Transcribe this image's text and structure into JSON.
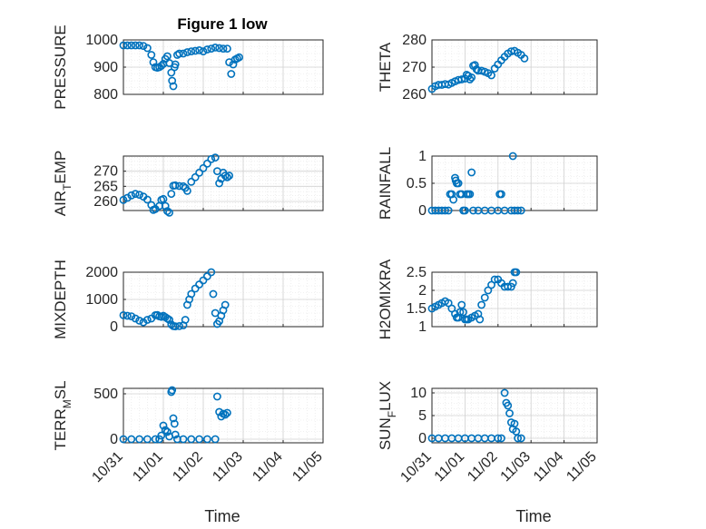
{
  "figure": {
    "title": "Figure 1 low",
    "xlabel": "Time",
    "xticks": [
      "10/31",
      "11/01",
      "11/02",
      "11/03",
      "11/04",
      "11/05"
    ],
    "marker_color": "#0072BD",
    "marker": "circle-open",
    "grid": "major-and-minor"
  },
  "chart_data": [
    {
      "type": "scatter",
      "name": "PRESSURE",
      "ylabel": "PRESSURE",
      "ylim": [
        800,
        1000
      ],
      "yticks": [
        800,
        900,
        1000
      ],
      "xlim": [
        0,
        5
      ],
      "points": [
        [
          0,
          980
        ],
        [
          0.1,
          980
        ],
        [
          0.2,
          980
        ],
        [
          0.3,
          980
        ],
        [
          0.4,
          980
        ],
        [
          0.5,
          978
        ],
        [
          0.6,
          970
        ],
        [
          0.7,
          945
        ],
        [
          0.75,
          918
        ],
        [
          0.8,
          900
        ],
        [
          0.85,
          898
        ],
        [
          0.9,
          900
        ],
        [
          0.95,
          905
        ],
        [
          1.0,
          912
        ],
        [
          1.05,
          930
        ],
        [
          1.1,
          940
        ],
        [
          1.15,
          915
        ],
        [
          1.2,
          880
        ],
        [
          1.22,
          850
        ],
        [
          1.25,
          830
        ],
        [
          1.28,
          900
        ],
        [
          1.3,
          910
        ],
        [
          1.35,
          945
        ],
        [
          1.4,
          950
        ],
        [
          1.5,
          950
        ],
        [
          1.6,
          955
        ],
        [
          1.7,
          958
        ],
        [
          1.8,
          960
        ],
        [
          1.9,
          962
        ],
        [
          2.0,
          958
        ],
        [
          2.1,
          965
        ],
        [
          2.2,
          968
        ],
        [
          2.3,
          972
        ],
        [
          2.4,
          970
        ],
        [
          2.5,
          968
        ],
        [
          2.6,
          968
        ],
        [
          2.65,
          918
        ],
        [
          2.7,
          875
        ],
        [
          2.75,
          910
        ],
        [
          2.8,
          928
        ],
        [
          2.85,
          932
        ],
        [
          2.9,
          936
        ]
      ]
    },
    {
      "type": "scatter",
      "name": "THETA",
      "ylabel": "THETA",
      "ylim": [
        260,
        280
      ],
      "yticks": [
        260,
        270,
        280
      ],
      "xlim": [
        0,
        5
      ],
      "points": [
        [
          0,
          262
        ],
        [
          0.1,
          263
        ],
        [
          0.2,
          263.5
        ],
        [
          0.3,
          263.5
        ],
        [
          0.4,
          263.8
        ],
        [
          0.5,
          263.6
        ],
        [
          0.6,
          264.2
        ],
        [
          0.7,
          264.8
        ],
        [
          0.8,
          265.3
        ],
        [
          0.9,
          265.5
        ],
        [
          1.0,
          265.8
        ],
        [
          1.05,
          267.2
        ],
        [
          1.1,
          266.8
        ],
        [
          1.15,
          265.5
        ],
        [
          1.2,
          266.2
        ],
        [
          1.25,
          270.5
        ],
        [
          1.3,
          270.8
        ],
        [
          1.35,
          269.2
        ],
        [
          1.4,
          268.7
        ],
        [
          1.5,
          268.7
        ],
        [
          1.6,
          268.3
        ],
        [
          1.7,
          267.8
        ],
        [
          1.8,
          267.0
        ],
        [
          1.9,
          269.5
        ],
        [
          2.0,
          271.0
        ],
        [
          2.1,
          272.5
        ],
        [
          2.2,
          273.8
        ],
        [
          2.3,
          275.0
        ],
        [
          2.4,
          275.8
        ],
        [
          2.5,
          276.0
        ],
        [
          2.6,
          275.3
        ],
        [
          2.7,
          274.5
        ],
        [
          2.8,
          273.2
        ]
      ]
    },
    {
      "type": "scatter",
      "name": "AIR_TEMP",
      "ylabel": "AIR_TEMP",
      "ylim": [
        257,
        275
      ],
      "yticks": [
        260,
        265,
        270
      ],
      "xlim": [
        0,
        5
      ],
      "points": [
        [
          0,
          260.5
        ],
        [
          0.1,
          261.2
        ],
        [
          0.2,
          262
        ],
        [
          0.3,
          262.5
        ],
        [
          0.4,
          262.2
        ],
        [
          0.5,
          261.6
        ],
        [
          0.6,
          260.6
        ],
        [
          0.7,
          258.8
        ],
        [
          0.75,
          257.2
        ],
        [
          0.8,
          257.5
        ],
        [
          0.9,
          258.5
        ],
        [
          0.95,
          260.5
        ],
        [
          1.0,
          260.8
        ],
        [
          1.05,
          258.5
        ],
        [
          1.1,
          256.8
        ],
        [
          1.15,
          256.3
        ],
        [
          1.2,
          262.5
        ],
        [
          1.25,
          265.2
        ],
        [
          1.3,
          265.3
        ],
        [
          1.4,
          265.1
        ],
        [
          1.5,
          265.0
        ],
        [
          1.55,
          264.5
        ],
        [
          1.6,
          263.5
        ],
        [
          1.7,
          266.5
        ],
        [
          1.8,
          268.0
        ],
        [
          1.9,
          269.5
        ],
        [
          2.0,
          271.0
        ],
        [
          2.1,
          272.5
        ],
        [
          2.2,
          274.0
        ],
        [
          2.3,
          274.5
        ],
        [
          2.35,
          270.0
        ],
        [
          2.4,
          266.0
        ],
        [
          2.45,
          267.5
        ],
        [
          2.5,
          269.5
        ],
        [
          2.55,
          268.5
        ],
        [
          2.6,
          268.0
        ],
        [
          2.65,
          268.5
        ]
      ]
    },
    {
      "type": "scatter",
      "name": "RAINFALL",
      "ylabel": "RAINFALL",
      "ylim": [
        0,
        1
      ],
      "yticks": [
        0,
        0.5,
        1
      ],
      "xlim": [
        0,
        5
      ],
      "points": [
        [
          0,
          0
        ],
        [
          0.1,
          0
        ],
        [
          0.2,
          0
        ],
        [
          0.3,
          0
        ],
        [
          0.4,
          0
        ],
        [
          0.5,
          0
        ],
        [
          0.55,
          0.3
        ],
        [
          0.6,
          0.3
        ],
        [
          0.65,
          0.2
        ],
        [
          0.7,
          0.6
        ],
        [
          0.72,
          0.55
        ],
        [
          0.75,
          0.5
        ],
        [
          0.8,
          0.5
        ],
        [
          0.85,
          0.3
        ],
        [
          0.9,
          0.3
        ],
        [
          0.95,
          0
        ],
        [
          1.0,
          0
        ],
        [
          1.05,
          0.3
        ],
        [
          1.1,
          0.3
        ],
        [
          1.15,
          0.3
        ],
        [
          1.2,
          0.7
        ],
        [
          1.25,
          0
        ],
        [
          1.4,
          0
        ],
        [
          1.6,
          0
        ],
        [
          1.8,
          0
        ],
        [
          2.0,
          0
        ],
        [
          2.05,
          0.3
        ],
        [
          2.1,
          0.3
        ],
        [
          2.2,
          0
        ],
        [
          2.4,
          0
        ],
        [
          2.45,
          1.0
        ],
        [
          2.5,
          0
        ],
        [
          2.6,
          0
        ],
        [
          2.7,
          0
        ]
      ]
    },
    {
      "type": "scatter",
      "name": "MIXDEPTH",
      "ylabel": "MIXDEPTH",
      "ylim": [
        0,
        2000
      ],
      "yticks": [
        0,
        1000,
        2000
      ],
      "xlim": [
        0,
        5
      ],
      "points": [
        [
          0,
          420
        ],
        [
          0.1,
          400
        ],
        [
          0.2,
          380
        ],
        [
          0.3,
          300
        ],
        [
          0.4,
          220
        ],
        [
          0.5,
          160
        ],
        [
          0.6,
          250
        ],
        [
          0.7,
          300
        ],
        [
          0.8,
          420
        ],
        [
          0.85,
          430
        ],
        [
          0.9,
          380
        ],
        [
          0.95,
          360
        ],
        [
          1.0,
          400
        ],
        [
          1.05,
          350
        ],
        [
          1.1,
          300
        ],
        [
          1.15,
          250
        ],
        [
          1.2,
          80
        ],
        [
          1.25,
          20
        ],
        [
          1.3,
          10
        ],
        [
          1.4,
          20
        ],
        [
          1.5,
          50
        ],
        [
          1.55,
          250
        ],
        [
          1.6,
          800
        ],
        [
          1.65,
          1000
        ],
        [
          1.7,
          1200
        ],
        [
          1.8,
          1400
        ],
        [
          1.9,
          1550
        ],
        [
          2.0,
          1700
        ],
        [
          2.1,
          1850
        ],
        [
          2.2,
          2000
        ],
        [
          2.25,
          1200
        ],
        [
          2.3,
          500
        ],
        [
          2.35,
          100
        ],
        [
          2.4,
          200
        ],
        [
          2.45,
          400
        ],
        [
          2.5,
          600
        ],
        [
          2.55,
          800
        ]
      ]
    },
    {
      "type": "scatter",
      "name": "H2OMIXRA",
      "ylabel": "H2OMIXRA",
      "ylim": [
        1,
        2.5
      ],
      "yticks": [
        1,
        1.5,
        2,
        2.5
      ],
      "xlim": [
        0,
        5
      ],
      "points": [
        [
          0,
          1.5
        ],
        [
          0.1,
          1.55
        ],
        [
          0.2,
          1.6
        ],
        [
          0.3,
          1.65
        ],
        [
          0.4,
          1.7
        ],
        [
          0.5,
          1.65
        ],
        [
          0.6,
          1.5
        ],
        [
          0.7,
          1.35
        ],
        [
          0.75,
          1.25
        ],
        [
          0.8,
          1.25
        ],
        [
          0.85,
          1.4
        ],
        [
          0.9,
          1.6
        ],
        [
          0.95,
          1.4
        ],
        [
          1.0,
          1.2
        ],
        [
          1.05,
          1.2
        ],
        [
          1.1,
          1.2
        ],
        [
          1.2,
          1.25
        ],
        [
          1.3,
          1.3
        ],
        [
          1.4,
          1.35
        ],
        [
          1.45,
          1.2
        ],
        [
          1.5,
          1.6
        ],
        [
          1.6,
          1.8
        ],
        [
          1.7,
          2.0
        ],
        [
          1.8,
          2.15
        ],
        [
          1.9,
          2.3
        ],
        [
          2.0,
          2.3
        ],
        [
          2.1,
          2.2
        ],
        [
          2.2,
          2.1
        ],
        [
          2.3,
          2.1
        ],
        [
          2.4,
          2.1
        ],
        [
          2.45,
          2.2
        ],
        [
          2.5,
          2.5
        ],
        [
          2.55,
          2.5
        ]
      ]
    },
    {
      "type": "scatter",
      "name": "TERR_MSL",
      "ylabel": "TERR_MSL",
      "ylim": [
        -40,
        560
      ],
      "yticks": [
        0,
        500
      ],
      "xlim": [
        0,
        5
      ],
      "points": [
        [
          0,
          0
        ],
        [
          0.2,
          0
        ],
        [
          0.4,
          0
        ],
        [
          0.6,
          0
        ],
        [
          0.8,
          0
        ],
        [
          0.9,
          0
        ],
        [
          0.95,
          40
        ],
        [
          1.0,
          150
        ],
        [
          1.05,
          100
        ],
        [
          1.1,
          80
        ],
        [
          1.15,
          30
        ],
        [
          1.2,
          520
        ],
        [
          1.22,
          540
        ],
        [
          1.25,
          230
        ],
        [
          1.28,
          170
        ],
        [
          1.3,
          50
        ],
        [
          1.35,
          0
        ],
        [
          1.5,
          0
        ],
        [
          1.7,
          0
        ],
        [
          1.9,
          0
        ],
        [
          2.1,
          0
        ],
        [
          2.3,
          0
        ],
        [
          2.35,
          470
        ],
        [
          2.4,
          300
        ],
        [
          2.45,
          250
        ],
        [
          2.5,
          280
        ],
        [
          2.55,
          270
        ],
        [
          2.6,
          290
        ]
      ]
    },
    {
      "type": "scatter",
      "name": "SUN_FLUX",
      "ylabel": "SUN_FLUX",
      "ylim": [
        -1,
        11
      ],
      "yticks": [
        0,
        5,
        10
      ],
      "xlim": [
        0,
        5
      ],
      "points": [
        [
          0,
          0
        ],
        [
          0.2,
          0
        ],
        [
          0.4,
          0
        ],
        [
          0.6,
          0
        ],
        [
          0.8,
          0
        ],
        [
          1.0,
          0
        ],
        [
          1.2,
          0
        ],
        [
          1.4,
          0
        ],
        [
          1.6,
          0
        ],
        [
          1.8,
          0
        ],
        [
          2.0,
          0
        ],
        [
          2.1,
          0
        ],
        [
          2.2,
          10
        ],
        [
          2.25,
          7.8
        ],
        [
          2.3,
          7.2
        ],
        [
          2.35,
          5.5
        ],
        [
          2.4,
          3.5
        ],
        [
          2.45,
          2.0
        ],
        [
          2.5,
          3.2
        ],
        [
          2.55,
          1.5
        ],
        [
          2.6,
          0
        ],
        [
          2.7,
          0
        ]
      ]
    }
  ]
}
